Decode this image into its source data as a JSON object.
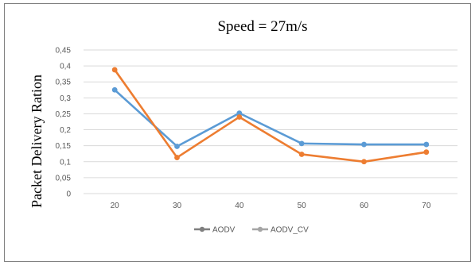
{
  "chart_data": {
    "type": "line",
    "title": "Speed = 27m/s",
    "xlabel": "",
    "ylabel": "Packet Delivery Ration",
    "categories": [
      "20",
      "30",
      "40",
      "50",
      "60",
      "70"
    ],
    "y_ticks": [
      "0",
      "0,05",
      "0,1",
      "0,15",
      "0,2",
      "0,25",
      "0,3",
      "0,35",
      "0,4",
      "0,45"
    ],
    "ylim": [
      0,
      0.45
    ],
    "grid": true,
    "legend_position": "bottom",
    "series": [
      {
        "name": "AODV",
        "color": "#5b9bd5",
        "legend_color": "#7f7f7f",
        "values": [
          0.325,
          0.148,
          0.252,
          0.157,
          0.154,
          0.154
        ]
      },
      {
        "name": "AODV_CV",
        "color": "#ed7d31",
        "legend_color": "#a5a5a5",
        "values": [
          0.388,
          0.113,
          0.24,
          0.123,
          0.1,
          0.13
        ]
      }
    ]
  }
}
